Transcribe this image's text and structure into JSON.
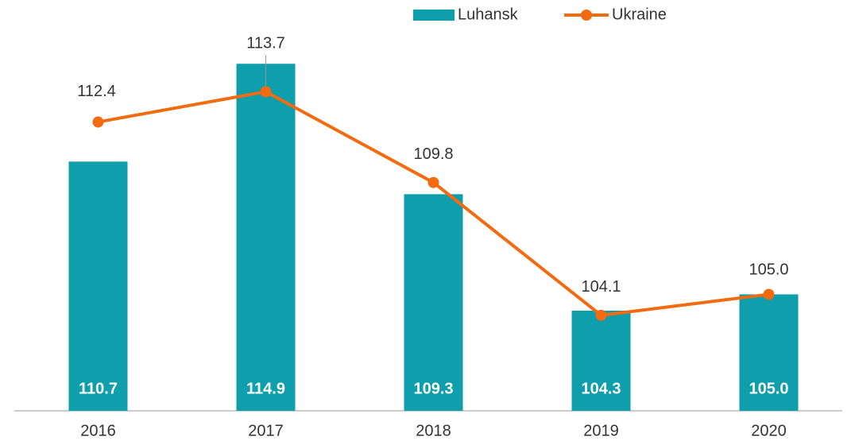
{
  "chart_data": {
    "type": "bar-line",
    "categories": [
      "2016",
      "2017",
      "2018",
      "2019",
      "2020"
    ],
    "series": [
      {
        "name": "Luhansk",
        "type": "bar",
        "color": "#0e9eac",
        "values": [
          110.7,
          114.9,
          109.3,
          104.3,
          105.0
        ],
        "value_labels": [
          "110.7",
          "114.9",
          "109.3",
          "104.3",
          "105.0"
        ]
      },
      {
        "name": "Ukraine",
        "type": "line",
        "color": "#f26b11",
        "values": [
          112.4,
          113.7,
          109.8,
          104.1,
          105.0
        ],
        "value_labels": [
          "112.4",
          "113.7",
          "109.8",
          "104.1",
          "105.0"
        ]
      }
    ],
    "ylim": [
      100,
      116
    ],
    "legend": "top"
  }
}
